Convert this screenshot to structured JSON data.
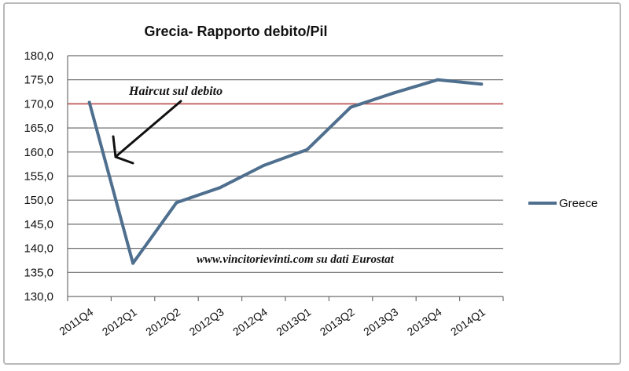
{
  "chart_data": {
    "type": "line",
    "title": "Grecia- Rapporto debito/Pil",
    "categories": [
      "2011Q4",
      "2012Q1",
      "2012Q2",
      "2012Q3",
      "2012Q4",
      "2013Q1",
      "2013Q2",
      "2013Q3",
      "2013Q4",
      "2014Q1"
    ],
    "series": [
      {
        "name": "Greece",
        "color": "#4f6f8f",
        "values": [
          170.3,
          136.9,
          149.5,
          152.6,
          157.2,
          160.5,
          169.3,
          172.3,
          175.0,
          174.1
        ]
      }
    ],
    "ylim": [
      130,
      180
    ],
    "yticks": [
      "130,0",
      "135,0",
      "140,0",
      "145,0",
      "150,0",
      "155,0",
      "160,0",
      "165,0",
      "170,0",
      "175,0",
      "180,0"
    ],
    "reference_line": {
      "value": 170,
      "color": "#c0504d"
    },
    "grid": true,
    "legend_position": "right",
    "annotations": {
      "haircut": "Haircut sul debito",
      "source": "www.vincitorievinti.com su dati Eurostat"
    }
  }
}
